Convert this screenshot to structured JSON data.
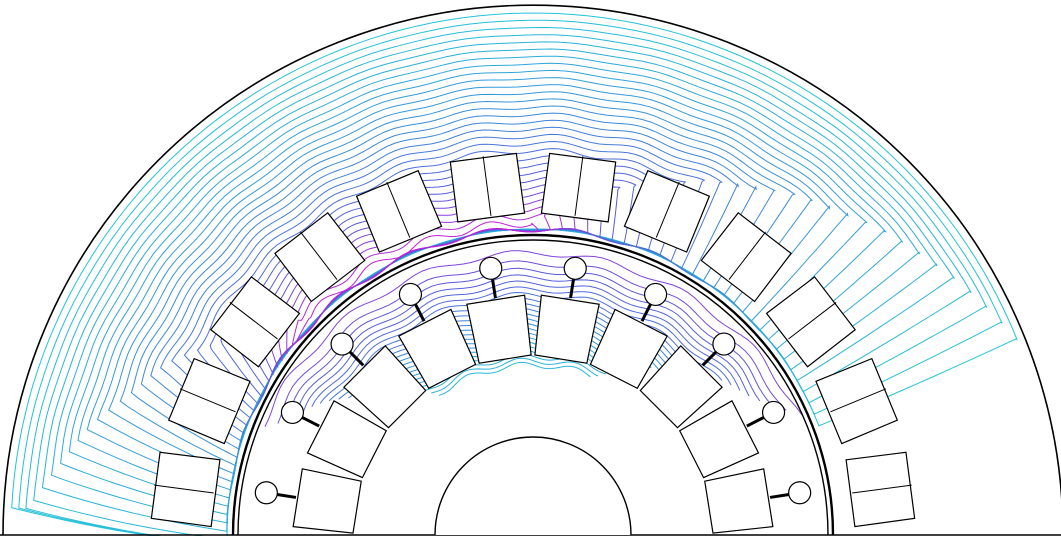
{
  "colors": {
    "background": "#ffffff",
    "geometry": "#000000",
    "flux_outer": "#22c4d8",
    "flux_mid": "#3a8fd8",
    "flux_deep": "#5a5adc",
    "flux_peak": "#c020d8"
  },
  "figure": {
    "stator_slots": 12,
    "rotor_slots": 10,
    "slot_conductor_split": "two-layer"
  }
}
